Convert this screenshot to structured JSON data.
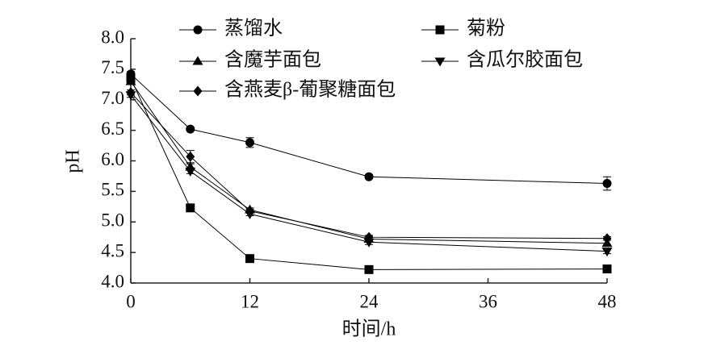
{
  "chart_data": {
    "type": "line",
    "x_label": "时间/h",
    "y_label": "pH",
    "x": [
      0,
      6,
      12,
      24,
      48
    ],
    "xlim": [
      0,
      48
    ],
    "xticks": [
      0,
      12,
      24,
      36,
      48
    ],
    "ylim": [
      4,
      8
    ],
    "yticks": [
      {
        "value": 4,
        "label": "4.0"
      },
      4.5,
      {
        "value": 5,
        "label": "5.0"
      },
      5.5,
      {
        "value": 6,
        "label": "6.0"
      },
      6.5,
      {
        "value": 7,
        "label": "7.0"
      },
      7.5,
      {
        "value": 8,
        "label": "8.0"
      }
    ],
    "legend_position": "top",
    "series": [
      {
        "name": "蒸馏水",
        "color": "#000000",
        "marker": "circle",
        "values": [
          7.42,
          6.52,
          6.3,
          5.74,
          5.63
        ],
        "errors": [
          0.04,
          0.03,
          0.08,
          0.03,
          0.11
        ]
      },
      {
        "name": "菊粉",
        "color": "#000000",
        "marker": "square",
        "values": [
          7.35,
          5.23,
          4.4,
          4.22,
          4.23
        ],
        "errors": [
          0.04,
          0.04,
          0.03,
          0.03,
          0.03
        ]
      },
      {
        "name": "含魔芋面包",
        "color": "#000000",
        "marker": "triangle",
        "values": [
          7.3,
          5.9,
          5.2,
          4.72,
          4.65
        ],
        "errors": [
          0.04,
          0.05,
          0.03,
          0.04,
          0.05
        ]
      },
      {
        "name": "含瓜尔胶面包",
        "color": "#000000",
        "marker": "triangle-down",
        "values": [
          7.08,
          5.83,
          5.13,
          4.67,
          4.52
        ],
        "errors": [
          0.04,
          0.04,
          0.03,
          0.04,
          0.04
        ]
      },
      {
        "name": "含燕麦β-葡聚糖面包",
        "color": "#000000",
        "marker": "diamond",
        "values": [
          7.12,
          6.07,
          5.18,
          4.75,
          4.73
        ],
        "errors": [
          0.04,
          0.1,
          0.03,
          0.03,
          0.03
        ]
      }
    ]
  }
}
